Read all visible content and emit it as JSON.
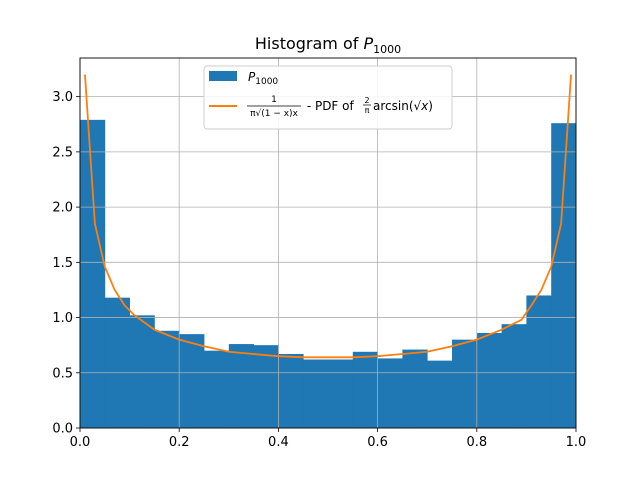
{
  "chart_data": {
    "type": "bar",
    "title": {
      "main": "Histogram of ",
      "var": "P",
      "sub": "1000"
    },
    "xlabel": "",
    "ylabel": "",
    "xlim": [
      0.0,
      1.0
    ],
    "ylim": [
      0.0,
      3.35
    ],
    "grid": true,
    "legend_position": "upper center",
    "x_ticks": [
      "0.0",
      "0.2",
      "0.4",
      "0.6",
      "0.8",
      "1.0"
    ],
    "x_tick_values": [
      0.0,
      0.2,
      0.4,
      0.6,
      0.8,
      1.0
    ],
    "y_ticks": [
      "0.0",
      "0.5",
      "1.0",
      "1.5",
      "2.0",
      "2.5",
      "3.0"
    ],
    "y_tick_values": [
      0.0,
      0.5,
      1.0,
      1.5,
      2.0,
      2.5,
      3.0
    ],
    "histogram": {
      "name_var": "P",
      "name_sub": "1000",
      "color": "#1f77b4",
      "bin_edges": [
        0.0,
        0.05,
        0.1,
        0.15,
        0.2,
        0.25,
        0.3,
        0.35,
        0.4,
        0.45,
        0.5,
        0.55,
        0.6,
        0.65,
        0.7,
        0.75,
        0.8,
        0.85,
        0.9,
        0.95,
        1.0
      ],
      "values": [
        2.79,
        1.18,
        1.02,
        0.88,
        0.85,
        0.7,
        0.76,
        0.75,
        0.67,
        0.62,
        0.62,
        0.69,
        0.63,
        0.71,
        0.61,
        0.8,
        0.86,
        0.94,
        1.2,
        2.76
      ]
    },
    "pdf_curve": {
      "label_suffix": " - PDF of ",
      "color": "#ff7f0e",
      "x": [
        0.01,
        0.03,
        0.05,
        0.07,
        0.09,
        0.11,
        0.15,
        0.2,
        0.25,
        0.3,
        0.35,
        0.4,
        0.45,
        0.5,
        0.55,
        0.6,
        0.65,
        0.7,
        0.75,
        0.8,
        0.85,
        0.89,
        0.91,
        0.93,
        0.95,
        0.97,
        0.99
      ],
      "y": [
        3.2,
        1.85,
        1.46,
        1.25,
        1.11,
        1.02,
        0.89,
        0.8,
        0.74,
        0.69,
        0.67,
        0.65,
        0.64,
        0.64,
        0.64,
        0.65,
        0.67,
        0.69,
        0.74,
        0.8,
        0.89,
        0.98,
        1.11,
        1.25,
        1.46,
        1.85,
        3.2
      ]
    }
  }
}
